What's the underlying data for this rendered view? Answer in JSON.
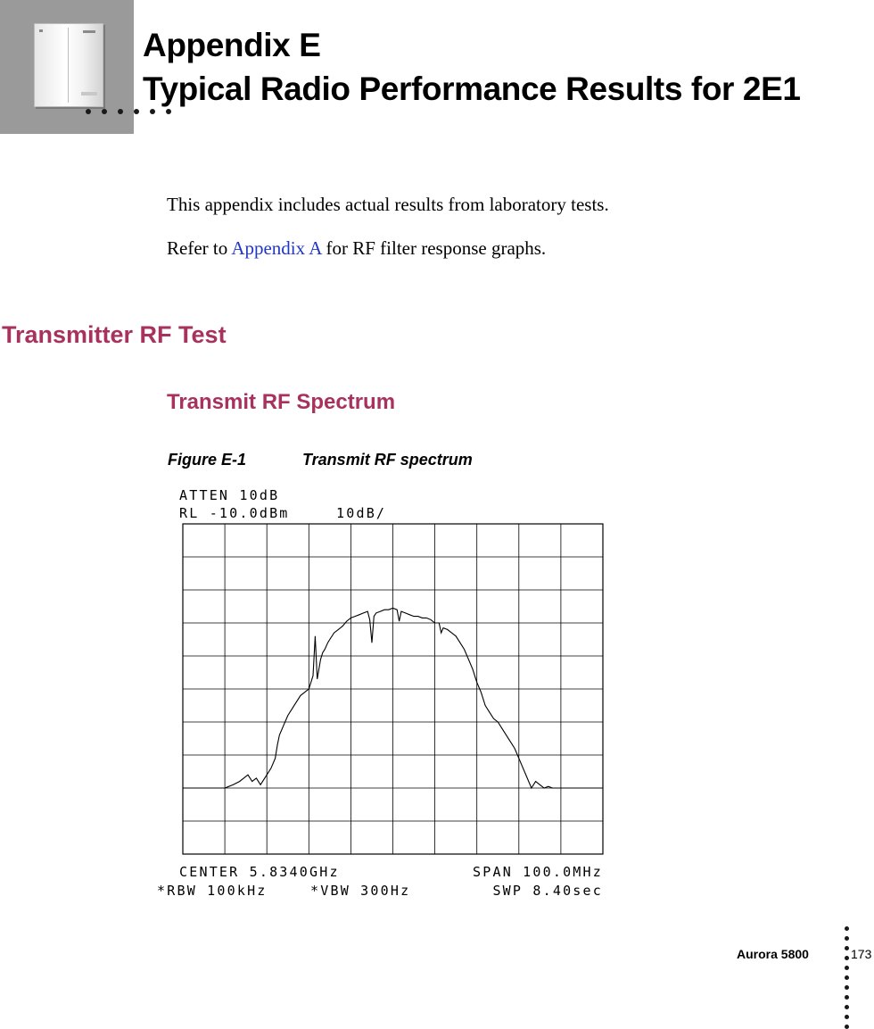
{
  "header": {
    "title_line1": "Appendix E",
    "title_line2": "Typical Radio Performance Results for 2E1"
  },
  "intro": {
    "para1": "This appendix includes actual results from laboratory tests.",
    "para2_prefix": "Refer to ",
    "para2_link": "Appendix A",
    "para2_suffix": " for RF filter response graphs."
  },
  "section": {
    "heading": "Transmitter RF Test",
    "subheading": "Transmit RF Spectrum"
  },
  "figure": {
    "number": "Figure E-1",
    "caption": "Transmit RF spectrum"
  },
  "chart_data": {
    "type": "line",
    "title": "",
    "top_labels": [
      "ATTEN 10dB",
      "RL -10.0dBm",
      "10dB/"
    ],
    "bottom_labels": [
      "CENTER 5.8340GHz",
      "SPAN 100.0MHz",
      "*RBW 100kHz",
      "*VBW 300Hz",
      "SWP 8.40sec"
    ],
    "x_unit": "MHz offset from center",
    "xlim": [
      -50,
      50
    ],
    "y_unit": "dBm",
    "ylim": [
      -110,
      -10
    ],
    "grid": {
      "x_divisions": 10,
      "y_divisions": 10
    },
    "series": [
      {
        "x": [
          -50,
          -48,
          -45,
          -42,
          -40,
          -38,
          -36.5,
          -35.5,
          -34.5,
          -33.5,
          -32.5,
          -31.5,
          -30,
          -29,
          -28,
          -27.5,
          -27,
          -26,
          -25,
          -24,
          -23,
          -22,
          -21,
          -20,
          -19,
          -18.5,
          -18,
          -17.2,
          -16.7,
          -16.2,
          -15.5,
          -15,
          -14,
          -13,
          -12,
          -11,
          -10,
          -9,
          -8,
          -7,
          -6,
          -5.5,
          -5,
          -4.5,
          -4,
          -3,
          -2,
          -1,
          0,
          1,
          1.5,
          2,
          3,
          4,
          5,
          6,
          7,
          8,
          9,
          10,
          11,
          11.5,
          12,
          13,
          14,
          15,
          16,
          17,
          18,
          19,
          20,
          21,
          22,
          23,
          24,
          25,
          26,
          27,
          28,
          29,
          30,
          31,
          32,
          33,
          34,
          35,
          36,
          37,
          38,
          40,
          42,
          44,
          46,
          48,
          50
        ],
        "y": [
          -90,
          -90,
          -90,
          -90,
          -90,
          -89,
          -88,
          -87,
          -86,
          -88,
          -87,
          -89,
          -86,
          -84,
          -81,
          -77,
          -74,
          -71,
          -68,
          -66,
          -64,
          -62,
          -61,
          -60,
          -56,
          -44,
          -57,
          -51,
          -49,
          -48,
          -46,
          -45,
          -43,
          -42,
          -41,
          -39.5,
          -38.5,
          -38,
          -37.5,
          -37,
          -36.5,
          -39,
          -46,
          -38,
          -37,
          -36.5,
          -36,
          -36,
          -35.5,
          -36,
          -39.5,
          -36.5,
          -37,
          -37.5,
          -38,
          -38,
          -38.5,
          -38.5,
          -39,
          -40,
          -40,
          -43,
          -41.5,
          -42,
          -43,
          -44,
          -46,
          -48,
          -51,
          -54,
          -58,
          -61,
          -65,
          -67,
          -69,
          -70,
          -72,
          -74,
          -76,
          -78,
          -81,
          -84,
          -87,
          -90,
          -88,
          -89,
          -90,
          -89.5,
          -90,
          -90,
          -90,
          -90,
          -90,
          -90,
          -90
        ]
      }
    ]
  },
  "footer": {
    "product": "Aurora 5800",
    "page": "173"
  }
}
